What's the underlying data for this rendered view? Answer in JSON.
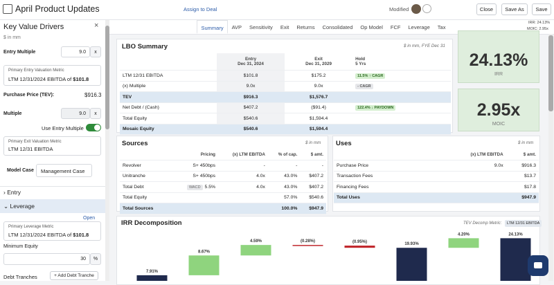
{
  "header": {
    "title": "April Product Updates",
    "assign": "Assign to Deal",
    "status": "Modified",
    "close": "Close",
    "save_as": "Save As",
    "save": "Save",
    "irr_label": "IRR:",
    "irr": "24.13%",
    "moic_label": "MOIC:",
    "moic": "2.95x"
  },
  "sidebar": {
    "title": "Key Value Drivers",
    "unit": "$ in mm",
    "entry_multiple_label": "Entry Multiple",
    "entry_multiple": "9.0",
    "x": "x",
    "primary_entry_metric_label": "Primary Entry Valuation Metric",
    "primary_entry_metric": "LTM 12/31/2024 EBITDA",
    "of": "of",
    "entry_metric_value": "$101.8",
    "purchase_price_label": "Purchase Price (TEV):",
    "purchase_price": "$916.3",
    "multiple_label": "Multiple",
    "multiple": "9.0",
    "use_entry_multiple": "Use Entry Multiple",
    "primary_exit_metric_label": "Primary Exit Valuation Metric",
    "primary_exit_metric": "LTM 12/31 EBITDA",
    "model_case_label": "Model Case",
    "model_case": "Management Case",
    "entry_section": "Entry",
    "leverage_section": "Leverage",
    "open": "Open",
    "primary_leverage_metric_label": "Primary Leverage Metric",
    "primary_leverage_metric": "LTM 12/31/2024 EBITDA",
    "leverage_metric_value": "$101.8",
    "minimum_equity_label": "Minimum Equity",
    "minimum_equity": "30",
    "percent": "%",
    "debt_tranches": "Debt Tranches",
    "add_debt_tranche": "+ Add Debt Tranche"
  },
  "tabs": [
    "Summary",
    "AVP",
    "Sensitivity",
    "Exit",
    "Returns",
    "Consolidated",
    "Op Model",
    "FCF",
    "Leverage",
    "Tax"
  ],
  "lbo": {
    "title": "LBO Summary",
    "note": "$ in mm, FYE Dec 31",
    "columns": [
      [
        "Entry",
        "Dec 31, 2024"
      ],
      [
        "Exit",
        "Dec 31, 2029"
      ],
      [
        "Hold",
        "5 Yrs"
      ]
    ],
    "rows": [
      {
        "label": "LTM 12/31 EBITDA",
        "entry": "$101.8",
        "exit": "$175.2",
        "hold": "11.5% ↑ CAGR"
      },
      {
        "label": "(x) Multiple",
        "entry": "9.0x",
        "exit": "9.0x",
        "hold": "- CAGR"
      },
      {
        "label": "TEV",
        "entry": "$916.3",
        "exit": "$1,576.7",
        "bold": true
      },
      {
        "label": "Net Debt / (Cash)",
        "entry": "$407.2",
        "exit": "($91.4)",
        "hold": "122.4% ↓ PAYDOWN"
      },
      {
        "label": "Total Equity",
        "entry": "$540.6",
        "exit": "$1,594.4"
      },
      {
        "label": "Mosaic Equity",
        "entry": "$540.6",
        "exit": "$1,594.4",
        "bold": true
      }
    ]
  },
  "kpis": [
    {
      "value": "24.13%",
      "label": "IRR"
    },
    {
      "value": "2.95x",
      "label": "MOIC"
    }
  ],
  "sources": {
    "title": "Sources",
    "note": "$ in mm",
    "columns": [
      "Pricing",
      "(x) LTM EBITDA",
      "% of cap.",
      "$ amt."
    ],
    "rows": [
      {
        "label": "Revolver",
        "pricing": "S+ 450bps",
        "ltm": "-",
        "pct": "-",
        "amt": "-"
      },
      {
        "label": "Unitranche",
        "pricing": "S+ 450bps",
        "ltm": "4.0x",
        "pct": "43.0%",
        "amt": "$407.2"
      },
      {
        "label": "Total Debt",
        "badge": "WACD",
        "pricing": "5.5%",
        "ltm": "4.0x",
        "pct": "43.0%",
        "amt": "$407.2"
      },
      {
        "label": "Total Equity",
        "pct": "57.0%",
        "amt": "$540.6"
      },
      {
        "label": "Total Sources",
        "pct": "100.0%",
        "amt": "$947.9",
        "bold": true
      }
    ]
  },
  "uses": {
    "title": "Uses",
    "note": "$ in mm",
    "columns": [
      "(x) LTM EBITDA",
      "$ amt."
    ],
    "rows": [
      {
        "label": "Purchase Price",
        "ltm": "9.0x",
        "amt": "$916.3"
      },
      {
        "label": "Transaction Fees",
        "amt": "$13.7"
      },
      {
        "label": "Financing Fees",
        "amt": "$17.8"
      },
      {
        "label": "Total Uses",
        "amt": "$947.9",
        "bold": true
      }
    ]
  },
  "irr_decomposition": {
    "title": "IRR Decomposition",
    "metric_label": "TEV Decomp Metric:",
    "metric": "LTM 12/31 EBITDA",
    "values": [
      7.91,
      8.67,
      4.59,
      -0.28,
      -0.95,
      19.93,
      4.2,
      24.13
    ],
    "value_labels": [
      "7.91%",
      "8.67%",
      "4.59%",
      "(0.28%)",
      "(0.95%)",
      "19.93%",
      "4.20%",
      "24.13%"
    ],
    "colors": [
      "#1f2a4d",
      "#8fd47e",
      "#8fd47e",
      "#c0262b",
      "#c0262b",
      "#1f2a4d",
      "#8fd47e",
      "#1f2a4d"
    ]
  }
}
